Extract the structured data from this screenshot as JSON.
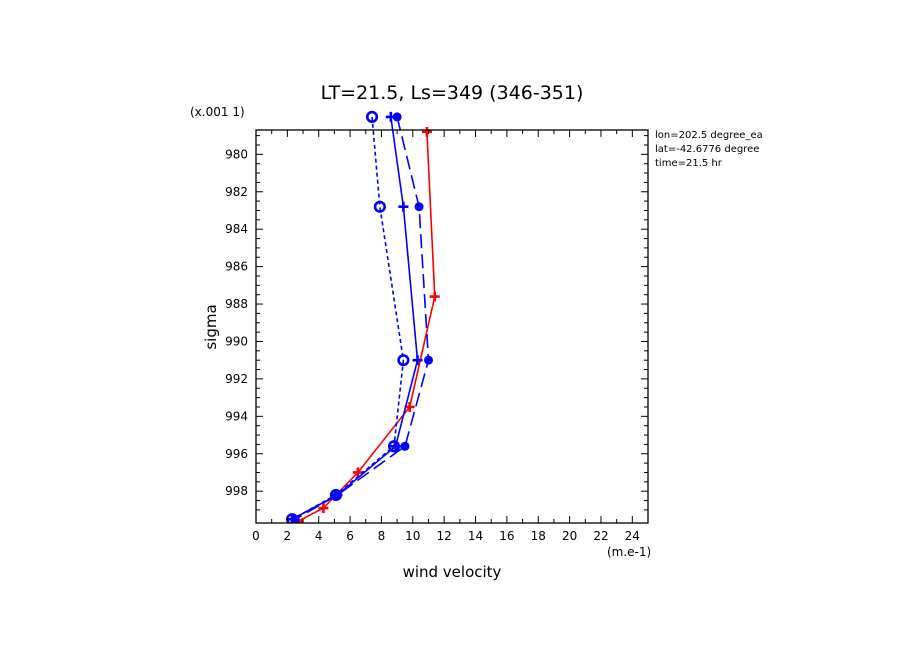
{
  "chart_data": {
    "type": "line",
    "title": "LT=21.5, Ls=349 (346-351)",
    "xlabel": "wind velocity",
    "ylabel": "sigma",
    "x_unit": "(m.e-1)",
    "y_unit": "(x.001 1)",
    "xlim": [
      0,
      25
    ],
    "ylim": [
      999.7,
      978.7
    ],
    "y_inverted": true,
    "x_ticks": [
      0,
      2,
      4,
      6,
      8,
      10,
      12,
      14,
      16,
      18,
      20,
      22,
      24
    ],
    "y_ticks": [
      980,
      982,
      984,
      986,
      988,
      990,
      992,
      994,
      996,
      998
    ],
    "annotations": [
      "lon=202.5 degree_ea",
      "lat=-42.6776 degree",
      "time=21.5 hr"
    ],
    "grid": false,
    "series": [
      {
        "style": "solid",
        "color": "#ff0000",
        "marker": "plus",
        "points": [
          [
            10.9,
            978.8
          ],
          [
            11.4,
            987.6
          ],
          [
            9.8,
            993.5
          ],
          [
            6.5,
            997.0
          ],
          [
            4.3,
            998.9
          ],
          [
            2.7,
            999.6
          ]
        ]
      },
      {
        "style": "dashed",
        "color": "#0000ff",
        "marker": "star",
        "points": [
          [
            9.0,
            978.0
          ],
          [
            10.4,
            982.8
          ],
          [
            11.0,
            991.0
          ],
          [
            9.5,
            995.6
          ],
          [
            5.2,
            998.2
          ],
          [
            2.5,
            999.5
          ]
        ]
      },
      {
        "style": "solid",
        "color": "#0000ff",
        "marker": "plus",
        "points": [
          [
            8.6,
            978.0
          ],
          [
            9.4,
            982.8
          ],
          [
            10.3,
            991.0
          ],
          [
            8.9,
            995.6
          ],
          [
            5.2,
            998.2
          ],
          [
            2.3,
            999.5
          ]
        ]
      },
      {
        "style": "dotted",
        "color": "#0000ff",
        "marker": "circle",
        "points": [
          [
            7.4,
            978.0
          ],
          [
            7.9,
            982.8
          ],
          [
            9.4,
            991.0
          ],
          [
            8.8,
            995.6
          ],
          [
            5.1,
            998.2
          ],
          [
            2.3,
            999.5
          ]
        ]
      }
    ]
  }
}
